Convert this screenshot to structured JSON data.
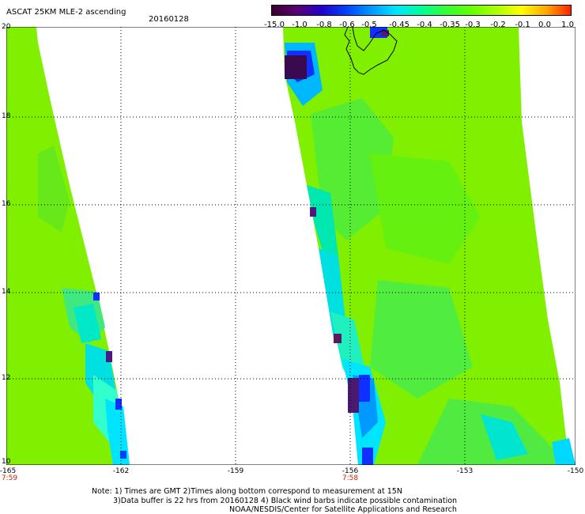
{
  "header": {
    "title": "ASCAT 25KM MLE-2 ascending",
    "date": "20160128"
  },
  "colorbar": {
    "labels": [
      "-15.0",
      "-1.0",
      "-0.8",
      "-0.6",
      "-0.5",
      "-0.45",
      "-0.4",
      "-0.35",
      "-0.3",
      "-0.2",
      "-0.1",
      "0.0",
      "1.0"
    ],
    "colors": [
      "#3a0030",
      "#5a0070",
      "#2200cc",
      "#0044ff",
      "#0099ff",
      "#00e5ff",
      "#00ff99",
      "#33ff33",
      "#66ff00",
      "#aaff00",
      "#ffff00",
      "#ffaa00",
      "#ff2200"
    ]
  },
  "map": {
    "lat_labels": [
      "20",
      "18",
      "16",
      "14",
      "12",
      "10"
    ],
    "lon_labels": [
      "-165",
      "-162",
      "-159",
      "-156",
      "-153",
      "-150"
    ],
    "time_labels": [
      "7:59",
      "7:58"
    ],
    "swath_colors": {
      "main": "#80f000",
      "green": "#33e833",
      "cyan": "#00e5d0",
      "blue": "#0033ff",
      "dark": "#3a0a50"
    }
  },
  "footer": {
    "line1": "Note: 1) Times are GMT 2)Times along bottom correspond to measurement at 15N",
    "line2": "3)Data buffer is 22 hrs from 20160128 4) Black wind barbs indicate possible contamination",
    "line3": "NOAA/NESDIS/Center for Satellite Applications and Research"
  }
}
